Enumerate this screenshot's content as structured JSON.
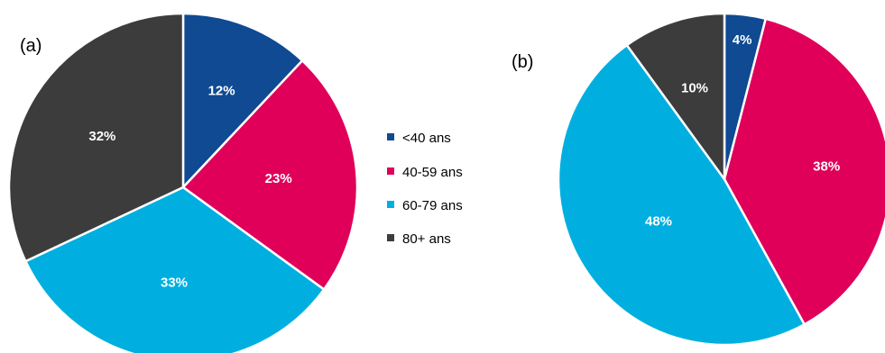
{
  "legend": [
    "<40 ans",
    "40-59 ans",
    "60-79 ans",
    "80+ ans"
  ],
  "colors": [
    "#0f4a93",
    "#e0005a",
    "#00afe0",
    "#3c3c3c"
  ],
  "chart_data": [
    {
      "type": "pie",
      "panel_label": "(a)",
      "categories": [
        "<40 ans",
        "40-59 ans",
        "60-79 ans",
        "80+ ans"
      ],
      "values": [
        12,
        23,
        33,
        32
      ],
      "labels": [
        "12%",
        "23%",
        "33%",
        "32%"
      ]
    },
    {
      "type": "pie",
      "panel_label": "(b)",
      "categories": [
        "<40 ans",
        "40-59 ans",
        "60-79 ans",
        "80+ ans"
      ],
      "values": [
        4,
        38,
        48,
        10
      ],
      "labels": [
        "4%",
        "38%",
        "48%",
        "10%"
      ]
    }
  ]
}
